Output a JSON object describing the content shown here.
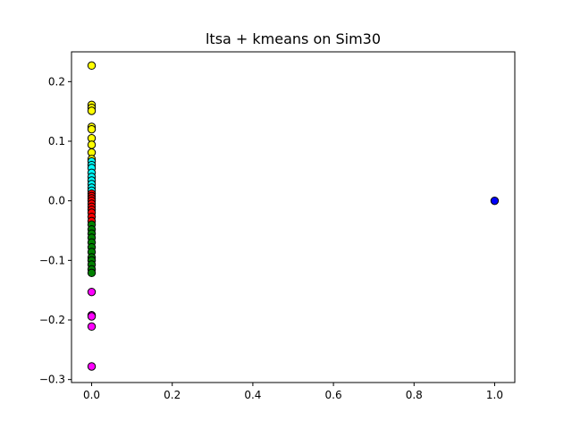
{
  "chart_data": {
    "type": "scatter",
    "title": "ltsa + kmeans on Sim30",
    "xlabel": "",
    "ylabel": "",
    "xlim": [
      -0.05,
      1.05
    ],
    "ylim": [
      -0.305,
      0.25
    ],
    "xticks": [
      0.0,
      0.2,
      0.4,
      0.6,
      0.8,
      1.0
    ],
    "xtick_labels": [
      "0.0",
      "0.2",
      "0.4",
      "0.6",
      "0.8",
      "1.0"
    ],
    "yticks": [
      -0.3,
      -0.2,
      -0.1,
      0.0,
      0.1,
      0.2
    ],
    "ytick_labels": [
      "−0.3",
      "−0.2",
      "−0.1",
      "0.0",
      "0.1",
      "0.2"
    ],
    "grid": false,
    "marker_edge_color": "#000000",
    "series": [
      {
        "color": "#ffff00",
        "points": [
          [
            0,
            0.227
          ],
          [
            0,
            0.161
          ],
          [
            0,
            0.156
          ],
          [
            0,
            0.151
          ],
          [
            0,
            0.124
          ],
          [
            0,
            0.12
          ],
          [
            0,
            0.105
          ],
          [
            0,
            0.094
          ],
          [
            0,
            0.081
          ],
          [
            0,
            0.07
          ]
        ]
      },
      {
        "color": "#00ffff",
        "points": [
          [
            0,
            0.066
          ],
          [
            0,
            0.06
          ],
          [
            0,
            0.055
          ],
          [
            0,
            0.047
          ],
          [
            0,
            0.04
          ],
          [
            0,
            0.034
          ],
          [
            0,
            0.028
          ],
          [
            0,
            0.022
          ],
          [
            0,
            0.017
          ]
        ]
      },
      {
        "color": "#ff0000",
        "points": [
          [
            0,
            0.012
          ],
          [
            0,
            0.008
          ],
          [
            0,
            0.004
          ],
          [
            0,
            0.0
          ],
          [
            0,
            -0.005
          ],
          [
            0,
            -0.01
          ],
          [
            0,
            -0.015
          ],
          [
            0,
            -0.02
          ],
          [
            0,
            -0.027
          ],
          [
            0,
            -0.034
          ]
        ]
      },
      {
        "color": "#008000",
        "points": [
          [
            0,
            -0.04
          ],
          [
            0,
            -0.048
          ],
          [
            0,
            -0.055
          ],
          [
            0,
            -0.062
          ],
          [
            0,
            -0.07
          ],
          [
            0,
            -0.078
          ],
          [
            0,
            -0.086
          ],
          [
            0,
            -0.095
          ],
          [
            0,
            -0.1
          ],
          [
            0,
            -0.107
          ],
          [
            0,
            -0.115
          ],
          [
            0,
            -0.121
          ]
        ]
      },
      {
        "color": "#ff00ff",
        "points": [
          [
            0,
            -0.153
          ],
          [
            0,
            -0.192
          ],
          [
            0,
            -0.194
          ],
          [
            0,
            -0.211
          ],
          [
            0,
            -0.278
          ]
        ]
      },
      {
        "color": "#0000ff",
        "points": [
          [
            1.0,
            0.0
          ]
        ]
      }
    ]
  }
}
